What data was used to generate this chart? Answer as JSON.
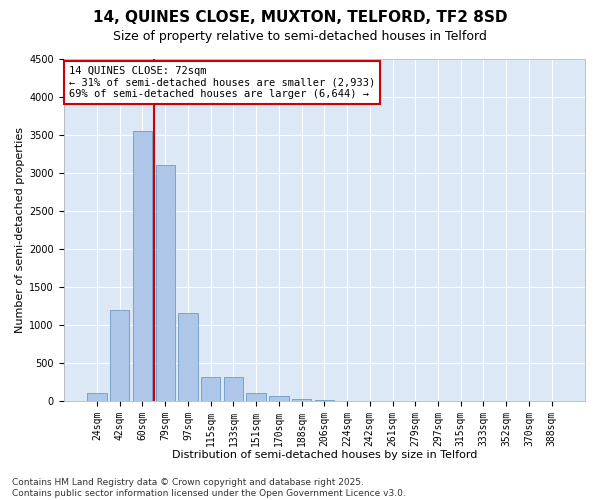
{
  "title_line1": "14, QUINES CLOSE, MUXTON, TELFORD, TF2 8SD",
  "title_line2": "Size of property relative to semi-detached houses in Telford",
  "xlabel": "Distribution of semi-detached houses by size in Telford",
  "ylabel": "Number of semi-detached properties",
  "categories": [
    "24sqm",
    "42sqm",
    "60sqm",
    "79sqm",
    "97sqm",
    "115sqm",
    "133sqm",
    "151sqm",
    "170sqm",
    "188sqm",
    "206sqm",
    "224sqm",
    "242sqm",
    "261sqm",
    "279sqm",
    "297sqm",
    "315sqm",
    "333sqm",
    "352sqm",
    "370sqm",
    "388sqm"
  ],
  "values": [
    100,
    1200,
    3550,
    3100,
    1150,
    320,
    320,
    110,
    60,
    20,
    5,
    2,
    1,
    0,
    0,
    0,
    0,
    0,
    0,
    0,
    0
  ],
  "bar_color": "#aec6e8",
  "bar_edge_color": "#5a8fc0",
  "vline_position": 2.5,
  "vline_color": "#cc0000",
  "annotation_text": "14 QUINES CLOSE: 72sqm\n← 31% of semi-detached houses are smaller (2,933)\n69% of semi-detached houses are larger (6,644) →",
  "annotation_box_color": "#ffffff",
  "annotation_box_edge": "#cc0000",
  "ylim": [
    0,
    4500
  ],
  "yticks": [
    0,
    500,
    1000,
    1500,
    2000,
    2500,
    3000,
    3500,
    4000,
    4500
  ],
  "footnote": "Contains HM Land Registry data © Crown copyright and database right 2025.\nContains public sector information licensed under the Open Government Licence v3.0.",
  "bg_color": "#ffffff",
  "plot_bg_color": "#dce8f5",
  "grid_color": "#ffffff",
  "title_fontsize": 11,
  "subtitle_fontsize": 9,
  "axis_label_fontsize": 8,
  "tick_fontsize": 7,
  "annotation_fontsize": 7.5,
  "footnote_fontsize": 6.5
}
